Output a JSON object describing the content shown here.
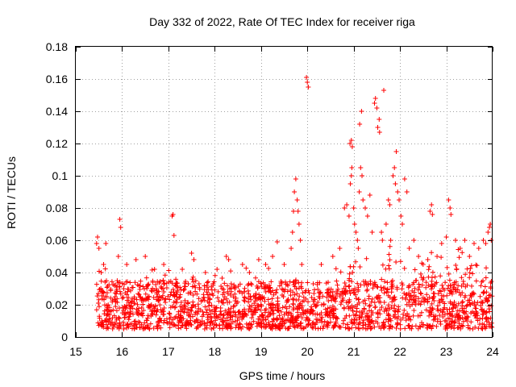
{
  "chart_data": {
    "type": "scatter",
    "title": "Day 332 of 2022, Rate Of TEC Index for receiver riga",
    "xlabel": "GPS time / hours",
    "ylabel": "ROTI / TECUs",
    "xlim": [
      15,
      24
    ],
    "ylim": [
      0,
      0.18
    ],
    "xticks": [
      "15",
      "16",
      "17",
      "18",
      "19",
      "20",
      "21",
      "22",
      "23",
      "24"
    ],
    "yticks": [
      "0",
      "0.02",
      "0.04",
      "0.06",
      "0.08",
      "0.1",
      "0.12",
      "0.14",
      "0.16",
      "0.18"
    ],
    "grid": true,
    "marker": "+",
    "color": "#ff0000",
    "series": [
      {
        "name": "ROTI",
        "points": [
          [
            15.45,
            0.058
          ],
          [
            15.47,
            0.062
          ],
          [
            15.5,
            0.055
          ],
          [
            15.55,
            0.04
          ],
          [
            15.6,
            0.045
          ],
          [
            15.65,
            0.058
          ],
          [
            15.95,
            0.073
          ],
          [
            15.97,
            0.068
          ],
          [
            15.92,
            0.05
          ],
          [
            16.1,
            0.045
          ],
          [
            16.3,
            0.048
          ],
          [
            16.5,
            0.05
          ],
          [
            16.7,
            0.042
          ],
          [
            16.9,
            0.045
          ],
          [
            17.08,
            0.075
          ],
          [
            17.1,
            0.076
          ],
          [
            17.12,
            0.063
          ],
          [
            17.3,
            0.042
          ],
          [
            17.5,
            0.052
          ],
          [
            17.55,
            0.048
          ],
          [
            17.8,
            0.04
          ],
          [
            18.05,
            0.042
          ],
          [
            18.25,
            0.05
          ],
          [
            18.3,
            0.048
          ],
          [
            18.6,
            0.045
          ],
          [
            18.75,
            0.04
          ],
          [
            18.95,
            0.048
          ],
          [
            19.1,
            0.045
          ],
          [
            19.25,
            0.05
          ],
          [
            19.35,
            0.059
          ],
          [
            19.5,
            0.045
          ],
          [
            19.65,
            0.055
          ],
          [
            19.72,
            0.09
          ],
          [
            19.75,
            0.098
          ],
          [
            19.78,
            0.085
          ],
          [
            19.8,
            0.078
          ],
          [
            19.82,
            0.07
          ],
          [
            19.7,
            0.078
          ],
          [
            19.68,
            0.065
          ],
          [
            19.85,
            0.06
          ],
          [
            19.88,
            0.045
          ],
          [
            19.98,
            0.161
          ],
          [
            20.0,
            0.158
          ],
          [
            20.02,
            0.155
          ],
          [
            20.3,
            0.045
          ],
          [
            20.55,
            0.05
          ],
          [
            20.7,
            0.055
          ],
          [
            20.8,
            0.08
          ],
          [
            20.85,
            0.082
          ],
          [
            20.9,
            0.075
          ],
          [
            20.93,
            0.095
          ],
          [
            20.95,
            0.1
          ],
          [
            20.96,
            0.105
          ],
          [
            20.92,
            0.12
          ],
          [
            20.95,
            0.122
          ],
          [
            20.97,
            0.118
          ],
          [
            21.0,
            0.08
          ],
          [
            21.02,
            0.07
          ],
          [
            21.05,
            0.065
          ],
          [
            21.08,
            0.06
          ],
          [
            21.1,
            0.055
          ],
          [
            21.12,
            0.09
          ],
          [
            21.15,
            0.105
          ],
          [
            21.18,
            0.1
          ],
          [
            21.13,
            0.132
          ],
          [
            21.17,
            0.14
          ],
          [
            21.2,
            0.085
          ],
          [
            21.25,
            0.08
          ],
          [
            21.3,
            0.075
          ],
          [
            21.35,
            0.088
          ],
          [
            21.4,
            0.065
          ],
          [
            21.45,
            0.145
          ],
          [
            21.47,
            0.148
          ],
          [
            21.5,
            0.142
          ],
          [
            21.52,
            0.13
          ],
          [
            21.55,
            0.135
          ],
          [
            21.56,
            0.127
          ],
          [
            21.6,
            0.065
          ],
          [
            21.62,
            0.06
          ],
          [
            21.65,
            0.153
          ],
          [
            21.7,
            0.07
          ],
          [
            21.75,
            0.085
          ],
          [
            21.78,
            0.082
          ],
          [
            21.8,
            0.06
          ],
          [
            21.85,
            0.1
          ],
          [
            21.88,
            0.105
          ],
          [
            21.9,
            0.095
          ],
          [
            21.92,
            0.115
          ],
          [
            21.95,
            0.09
          ],
          [
            21.98,
            0.085
          ],
          [
            22.02,
            0.075
          ],
          [
            22.05,
            0.07
          ],
          [
            22.1,
            0.098
          ],
          [
            22.15,
            0.09
          ],
          [
            22.2,
            0.055
          ],
          [
            22.3,
            0.06
          ],
          [
            22.4,
            0.05
          ],
          [
            22.5,
            0.045
          ],
          [
            22.6,
            0.048
          ],
          [
            22.65,
            0.078
          ],
          [
            22.68,
            0.082
          ],
          [
            22.7,
            0.076
          ],
          [
            22.8,
            0.05
          ],
          [
            22.9,
            0.058
          ],
          [
            23.0,
            0.062
          ],
          [
            23.05,
            0.085
          ],
          [
            23.08,
            0.08
          ],
          [
            23.1,
            0.076
          ],
          [
            23.2,
            0.06
          ],
          [
            23.3,
            0.055
          ],
          [
            23.4,
            0.06
          ],
          [
            23.5,
            0.05
          ],
          [
            23.6,
            0.058
          ],
          [
            23.7,
            0.055
          ],
          [
            23.8,
            0.06
          ],
          [
            23.85,
            0.058
          ],
          [
            23.9,
            0.065
          ],
          [
            23.93,
            0.068
          ],
          [
            23.95,
            0.07
          ],
          [
            23.97,
            0.06
          ]
        ]
      }
    ],
    "cloud": {
      "x_range": [
        15.45,
        24.0
      ],
      "base_range": [
        0.005,
        0.035
      ],
      "count": 1900
    }
  }
}
